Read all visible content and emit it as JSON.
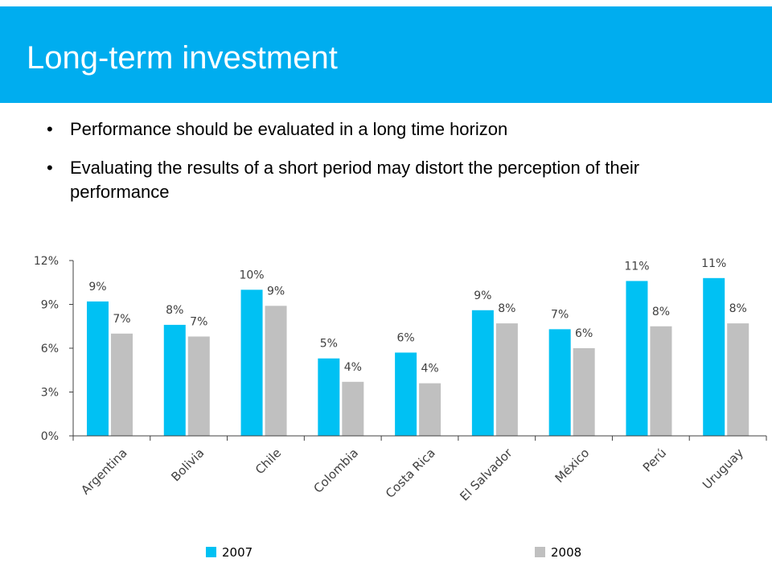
{
  "slide": {
    "title": "Long-term investment",
    "bullets": [
      "Performance should be evaluated in a long time horizon",
      "Evaluating the results of a short period may distort the perception of their performance"
    ]
  },
  "colors": {
    "header": "#00adef",
    "series_2007": "#00c1f3",
    "series_2008": "#c0c0c0"
  },
  "chart_data": {
    "type": "bar",
    "title": "",
    "xlabel": "",
    "ylabel": "",
    "categories": [
      "Argentina",
      "Bolivia",
      "Chile",
      "Colombia",
      "Costa Rica",
      "El Salvador",
      "México",
      "Perú",
      "Uruguay"
    ],
    "series": [
      {
        "name": "2007",
        "values": [
          9.2,
          7.6,
          10.0,
          5.3,
          5.7,
          8.6,
          7.3,
          10.6,
          10.8
        ],
        "labels": [
          "9%",
          "8%",
          "10%",
          "5%",
          "6%",
          "9%",
          "7%",
          "11%",
          "11%"
        ]
      },
      {
        "name": "2008",
        "values": [
          7.0,
          6.8,
          8.9,
          3.7,
          3.6,
          7.7,
          6.0,
          7.5,
          7.7
        ],
        "labels": [
          "7%",
          "7%",
          "9%",
          "4%",
          "4%",
          "8%",
          "6%",
          "8%",
          "8%"
        ]
      }
    ],
    "ylim": [
      0,
      12
    ],
    "yticks": [
      0,
      3,
      6,
      9,
      12
    ],
    "ytick_labels": [
      "0%",
      "3%",
      "6%",
      "9%",
      "12%"
    ],
    "grid": false,
    "legend": "bottom"
  }
}
